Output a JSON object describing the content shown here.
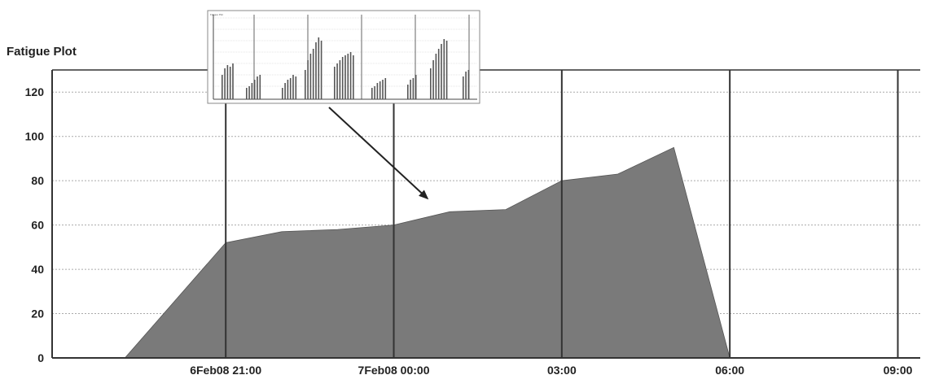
{
  "chart_data": {
    "type": "area",
    "title": "Fatigue Plot",
    "xlabel": "",
    "ylabel": "",
    "ylim": [
      0,
      130
    ],
    "yticks": [
      0,
      20,
      40,
      60,
      80,
      100,
      120
    ],
    "x_tick_labels": [
      "6Feb08 21:00",
      "7Feb08 00:00",
      "03:00",
      "06:00",
      "09:00"
    ],
    "x_tick_hours": [
      21,
      24,
      27,
      30,
      33
    ],
    "xlim_hours": [
      17.9,
      33.4
    ],
    "grid": true,
    "series": [
      {
        "name": "",
        "color": "#7a7a7a",
        "x_hours": [
          19.2,
          21.0,
          22.0,
          23.0,
          24.0,
          25.0,
          26.0,
          27.0,
          28.0,
          29.0,
          30.0
        ],
        "values": [
          0,
          52,
          57,
          58,
          60,
          66,
          67,
          80,
          83,
          95,
          0
        ]
      }
    ],
    "inset": {
      "title": "Fatigue Plot",
      "type": "bar"
    },
    "annotation": {
      "type": "arrow",
      "from": "inset",
      "to_point": {
        "x_hours": 24.6,
        "y": 72
      }
    }
  }
}
